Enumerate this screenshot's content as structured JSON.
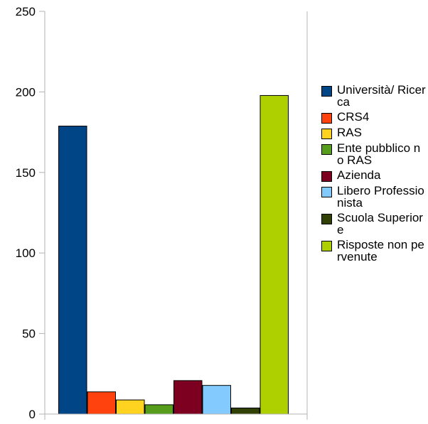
{
  "chart_data": {
    "type": "bar",
    "title": "",
    "xlabel": "",
    "ylabel": "",
    "categories": [
      ""
    ],
    "ylim": [
      0,
      250
    ],
    "yticks": [
      0,
      50,
      100,
      150,
      200,
      250
    ],
    "grid": false,
    "legend_position": "right",
    "series": [
      {
        "name": "Università/ Ricerca",
        "values": [
          179
        ],
        "color": "#004586"
      },
      {
        "name": "CRS4",
        "values": [
          14
        ],
        "color": "#FF420E"
      },
      {
        "name": "RAS",
        "values": [
          9
        ],
        "color": "#FFD320"
      },
      {
        "name": "Ente pubblico no RAS",
        "values": [
          6
        ],
        "color": "#579D1C"
      },
      {
        "name": "Azienda",
        "values": [
          21
        ],
        "color": "#7E0021"
      },
      {
        "name": "Libero Professionista",
        "values": [
          18
        ],
        "color": "#83CAFF"
      },
      {
        "name": "Scuola Superiore",
        "values": [
          4
        ],
        "color": "#314004"
      },
      {
        "name": "Risposte non pervenute",
        "values": [
          198
        ],
        "color": "#AECF00"
      }
    ]
  }
}
